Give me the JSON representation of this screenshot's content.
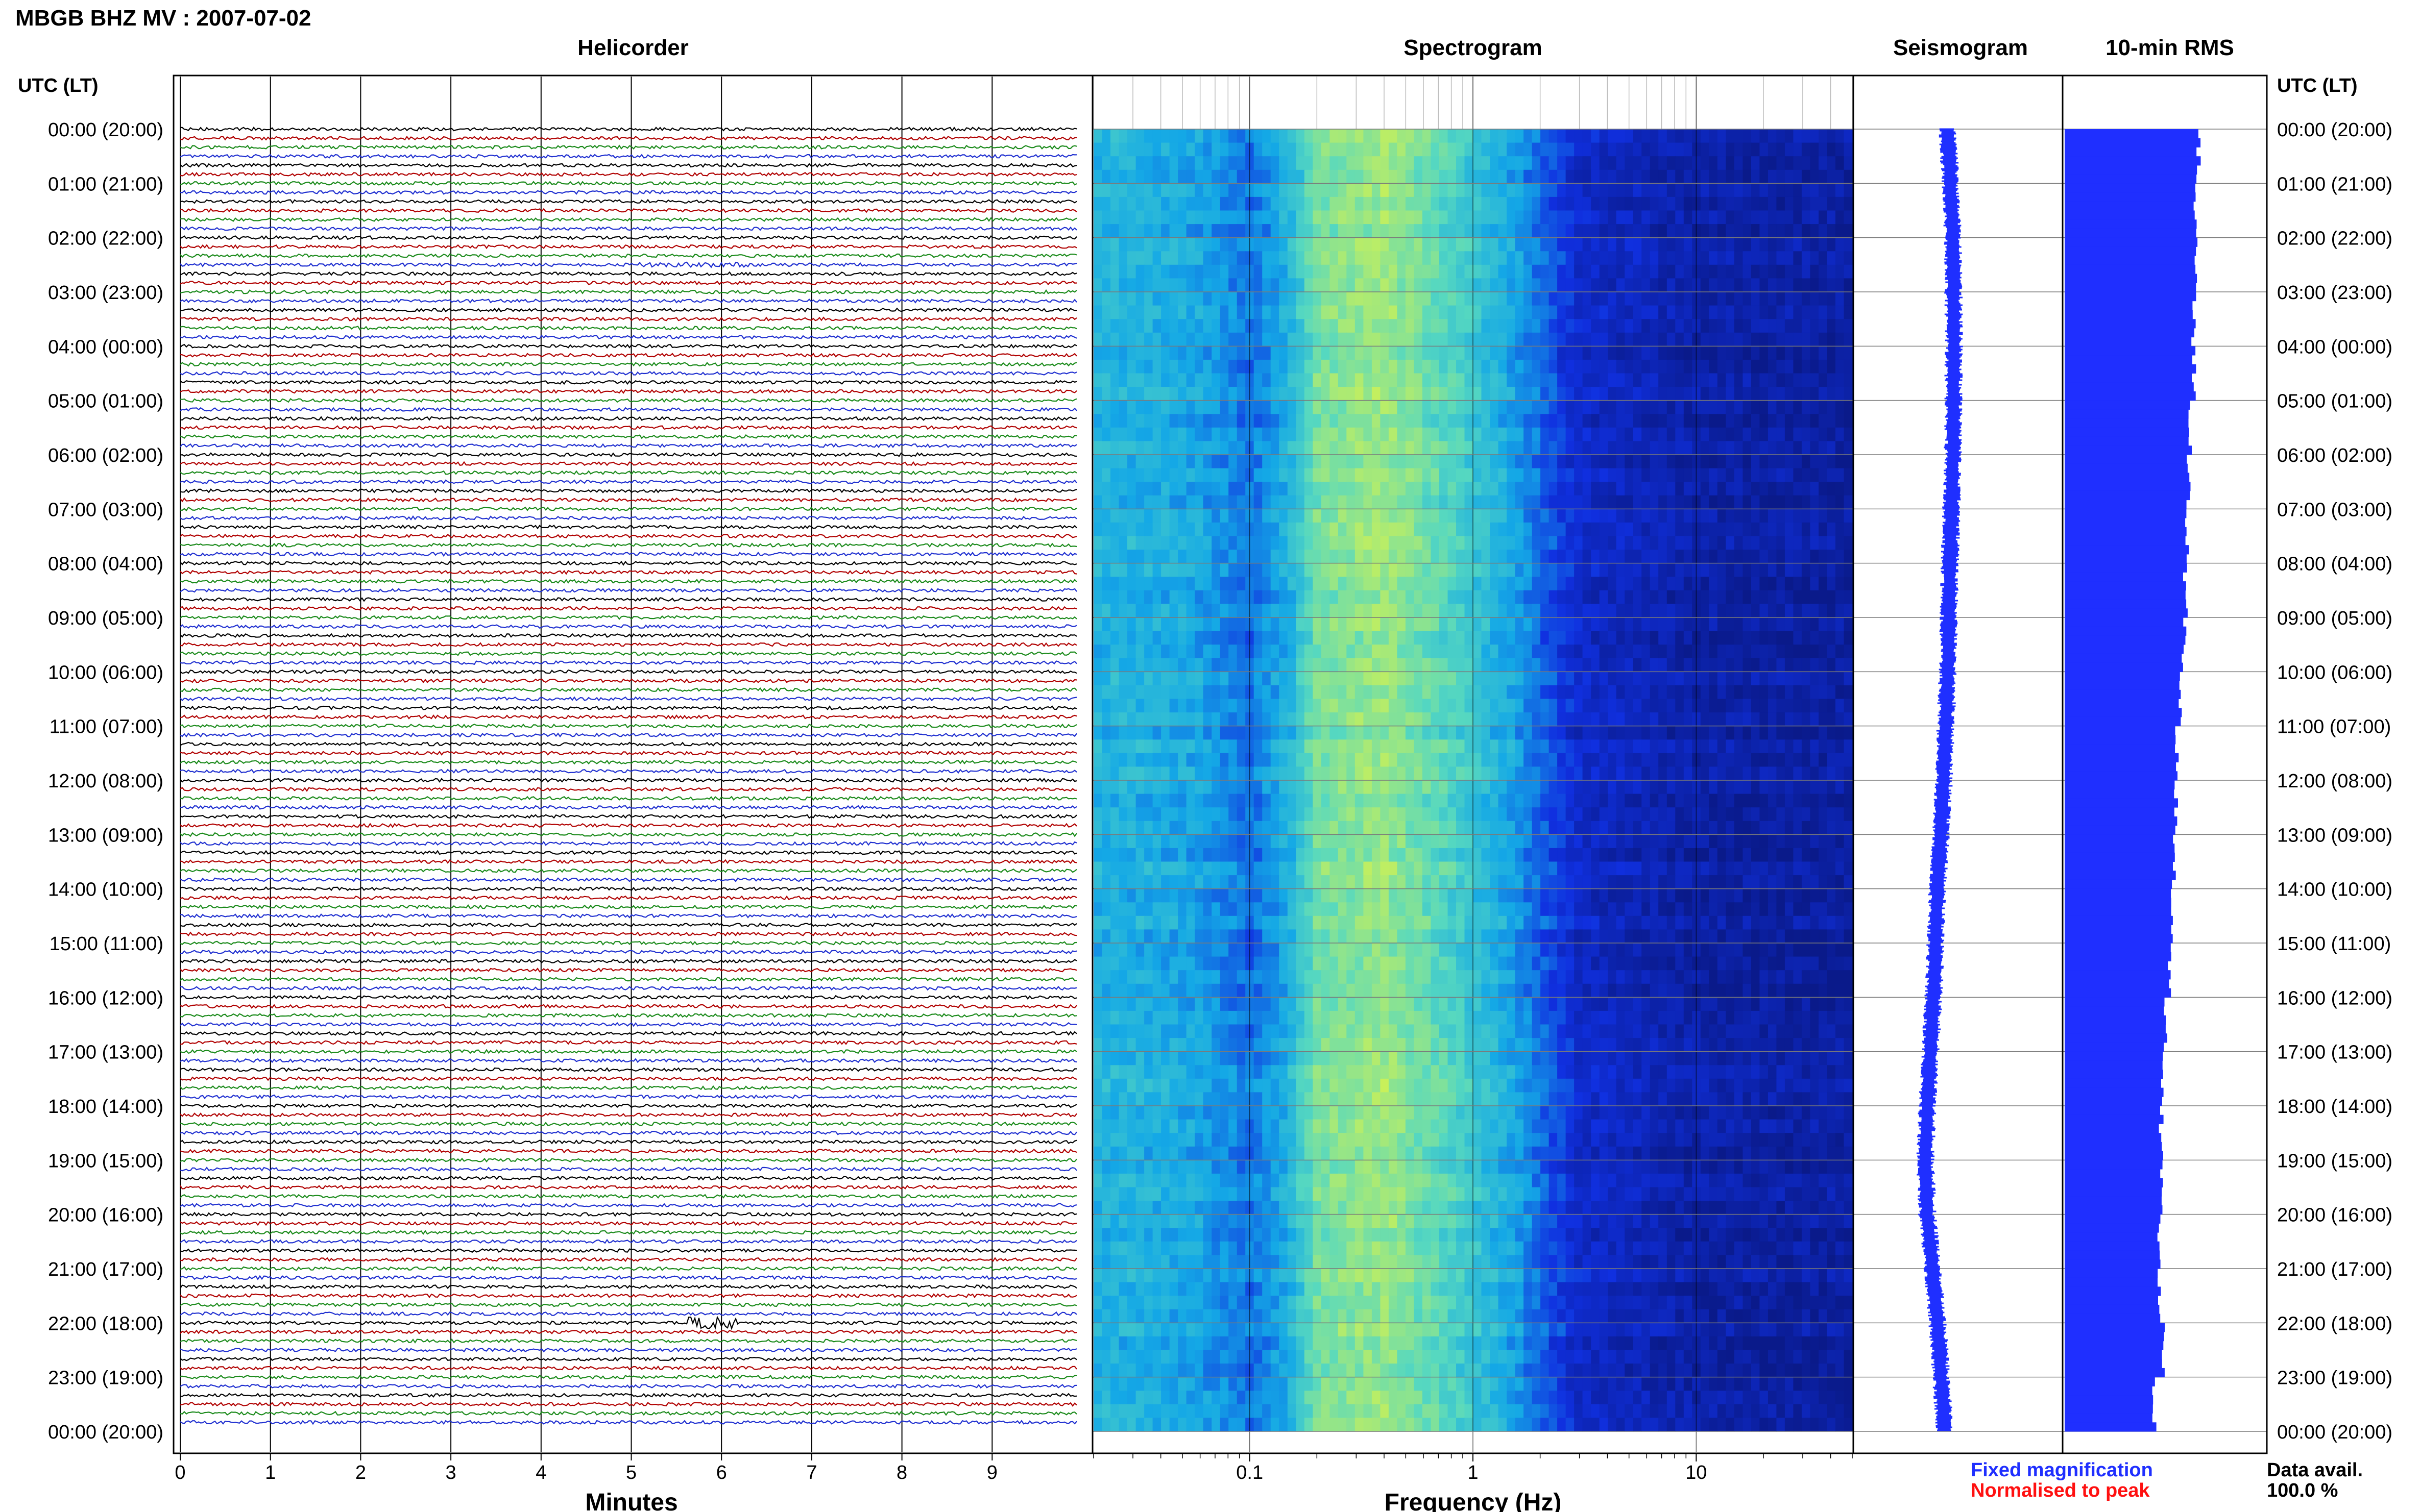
{
  "title": "MBGB BHZ MV : 2007-07-02",
  "panels": {
    "helicorder": "Helicorder",
    "spectrogram": "Spectrogram",
    "seismogram": "Seismogram",
    "rms": "10-min RMS"
  },
  "axis_labels": {
    "left_header": "UTC (LT)",
    "right_header": "UTC (LT)",
    "helicorder_x": "Minutes",
    "spectrogram_x": "Frequency (Hz)"
  },
  "legend": {
    "fixed": "Fixed magnification",
    "normalised": "Normalised to peak",
    "data_avail_label": "Data avail.",
    "data_avail_value": "100.0 %"
  },
  "colors": {
    "trace_cycle": [
      "#000000",
      "#b00000",
      "#1a8a1a",
      "#1f2fd0"
    ],
    "fixed": "#1f2fff",
    "normalised": "#ff1010",
    "seismogram": "#1f2fff",
    "rms_bar": "#1f2fff"
  },
  "chart_data": [
    {
      "type": "line",
      "panel": "helicorder",
      "xlabel": "Minutes",
      "xlim": [
        0,
        10
      ],
      "x_ticks": [
        0,
        1,
        2,
        3,
        4,
        5,
        6,
        7,
        8,
        9
      ],
      "rows_per_hour": 6,
      "hour_labels": [
        "00:00 (20:00)",
        "01:00 (21:00)",
        "02:00 (22:00)",
        "03:00 (23:00)",
        "04:00 (00:00)",
        "05:00 (01:00)",
        "06:00 (02:00)",
        "07:00 (03:00)",
        "08:00 (04:00)",
        "09:00 (05:00)",
        "10:00 (06:00)",
        "11:00 (07:00)",
        "12:00 (08:00)",
        "13:00 (09:00)",
        "14:00 (10:00)",
        "15:00 (11:00)",
        "16:00 (12:00)",
        "17:00 (13:00)",
        "18:00 (14:00)",
        "19:00 (15:00)",
        "20:00 (16:00)",
        "21:00 (17:00)",
        "22:00 (18:00)",
        "23:00 (19:00)",
        "00:00 (20:00)"
      ],
      "events": [
        {
          "hour": 2.5,
          "minute_start": 5.0,
          "minute_end": 6.3,
          "strength": 1.6
        },
        {
          "hour": 22.0,
          "minute_start": 5.6,
          "minute_end": 6.2,
          "strength": 3.5
        }
      ]
    },
    {
      "type": "heatmap",
      "panel": "spectrogram",
      "xlabel": "Frequency (Hz)",
      "x_scale": "log",
      "xlim": [
        0.02,
        50
      ],
      "x_ticks": [
        0.1,
        1,
        10
      ],
      "x_tick_labels": [
        "0.1",
        "1",
        "10"
      ],
      "colormap": [
        "#0a1a8a",
        "#1030e0",
        "#14a8e6",
        "#56d8c0",
        "#c8f05a"
      ],
      "bands": [
        {
          "f": 0.03,
          "level": 0.55
        },
        {
          "f": 0.06,
          "level": 0.5
        },
        {
          "f": 0.1,
          "level": 0.38
        },
        {
          "f": 0.15,
          "level": 0.55
        },
        {
          "f": 0.2,
          "level": 0.82
        },
        {
          "f": 0.4,
          "level": 0.9
        },
        {
          "f": 0.8,
          "level": 0.72
        },
        {
          "f": 1.5,
          "level": 0.5
        },
        {
          "f": 3,
          "level": 0.18
        },
        {
          "f": 10,
          "level": 0.08
        },
        {
          "f": 50,
          "level": 0.06
        }
      ]
    },
    {
      "type": "line",
      "panel": "seismogram",
      "y_hours": [
        0,
        2,
        4,
        6,
        8,
        10,
        12,
        14,
        16,
        18,
        19,
        20,
        22,
        24
      ],
      "x_offset": [
        0.5,
        0.55,
        0.56,
        0.55,
        0.52,
        0.5,
        0.46,
        0.4,
        0.36,
        0.3,
        0.28,
        0.3,
        0.4,
        0.47
      ]
    },
    {
      "type": "bar",
      "panel": "rms",
      "y_hours": [
        0,
        1,
        2,
        3,
        4,
        5,
        6,
        7,
        8,
        9,
        10,
        11,
        12,
        13,
        14,
        15,
        16,
        17,
        18,
        19,
        20,
        21,
        22,
        23
      ],
      "values": [
        0.82,
        0.8,
        0.8,
        0.79,
        0.79,
        0.77,
        0.76,
        0.75,
        0.74,
        0.73,
        0.71,
        0.69,
        0.68,
        0.67,
        0.66,
        0.64,
        0.62,
        0.6,
        0.59,
        0.59,
        0.58,
        0.58,
        0.6,
        0.55
      ]
    }
  ]
}
